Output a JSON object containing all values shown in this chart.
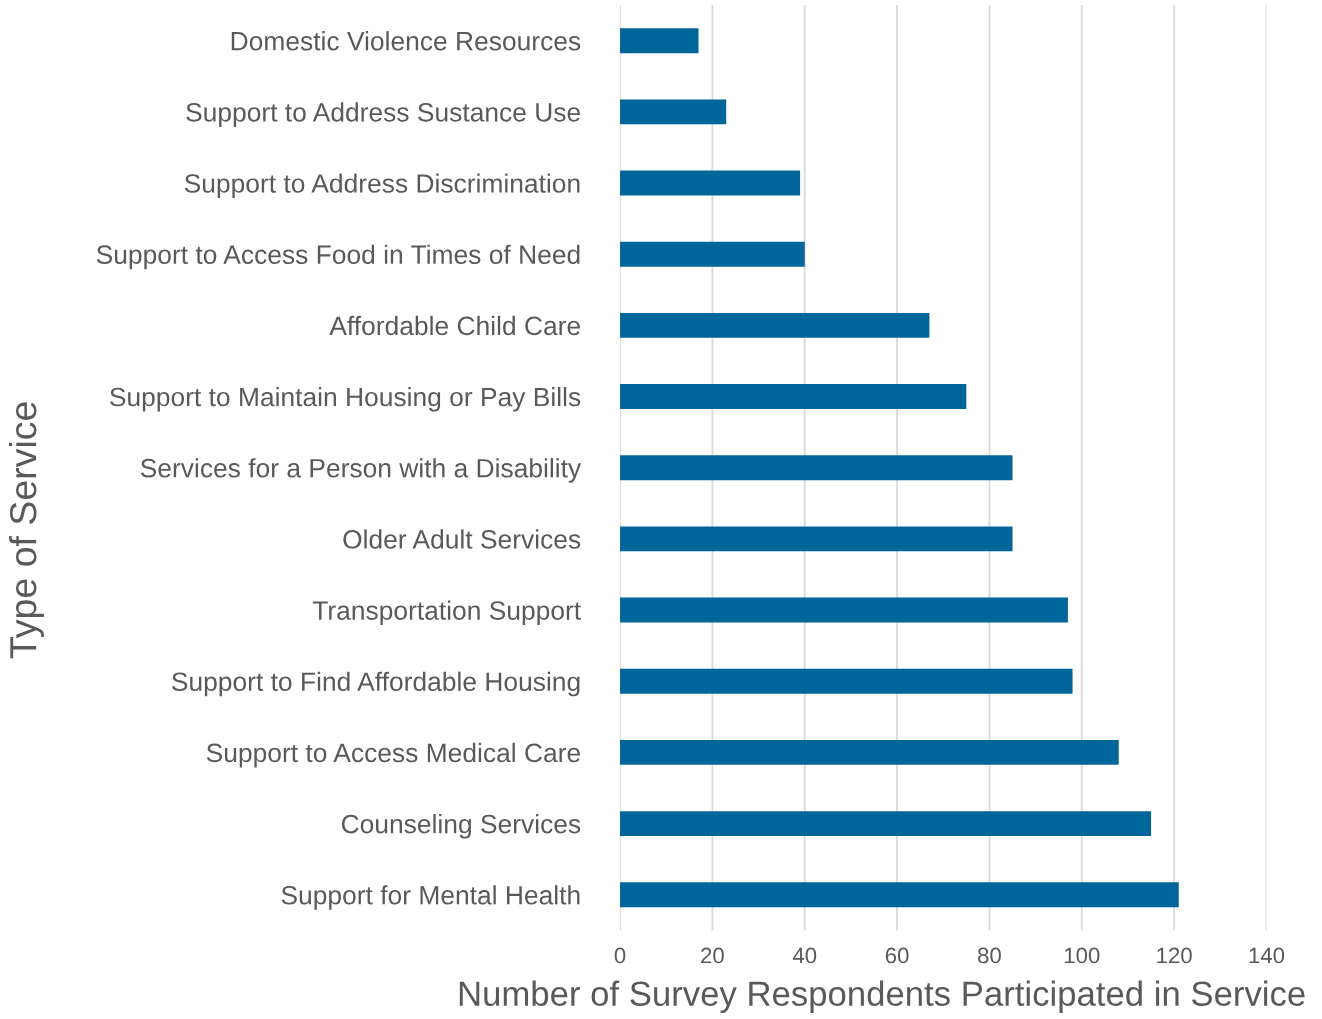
{
  "chart_data": {
    "type": "bar",
    "orientation": "horizontal",
    "xlabel": "Number of Survey Respondents Participated in Service",
    "ylabel": "Type of Service",
    "categories": [
      "Domestic Violence Resources",
      "Support to Address Sustance Use",
      "Support to Address Discrimination",
      "Support to Access Food in Times of Need",
      "Affordable Child Care",
      "Support to Maintain Housing or Pay Bills",
      "Services for a Person with a Disability",
      "Older Adult Services",
      "Transportation Support",
      "Support to Find Affordable Housing",
      "Support to Access Medical Care",
      "Counseling Services",
      "Support for Mental Health"
    ],
    "values": [
      17,
      23,
      39,
      40,
      67,
      75,
      85,
      85,
      97,
      98,
      108,
      115,
      121
    ],
    "color": "#006699",
    "xlim": [
      0,
      140
    ],
    "xticks": [
      0,
      20,
      40,
      60,
      80,
      100,
      120,
      140
    ],
    "grid": "x",
    "legend": false
  }
}
